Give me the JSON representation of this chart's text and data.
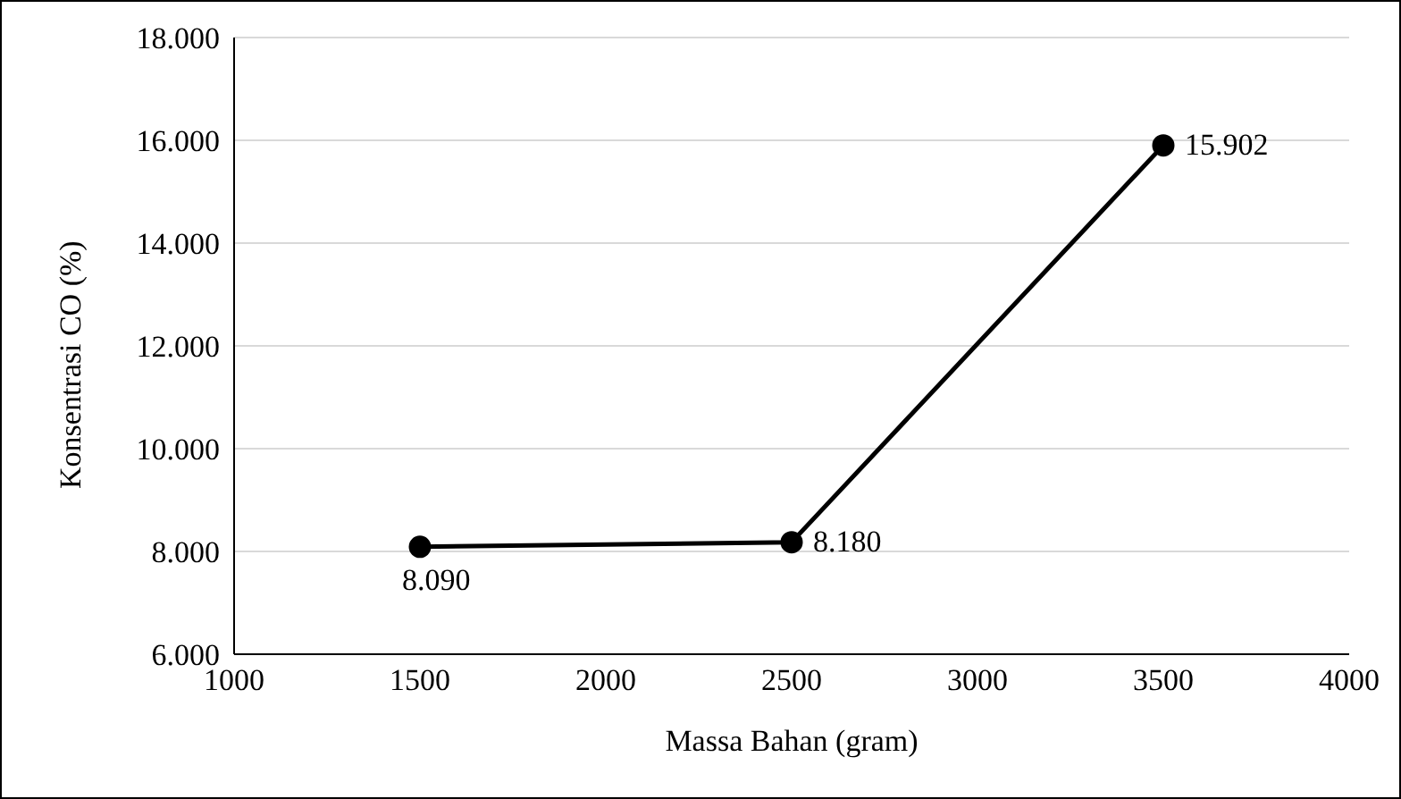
{
  "chart_data": {
    "type": "line",
    "xlabel": "Massa Bahan (gram)",
    "ylabel": "Konsentrasi CO (%)",
    "x": [
      1500,
      2500,
      3500
    ],
    "series": [
      {
        "color": "#000000",
        "values": [
          8.09,
          8.18,
          15.902
        ],
        "value_labels": [
          "8.090",
          "8.180",
          "15.902"
        ]
      }
    ],
    "xlim": [
      1000,
      4000
    ],
    "xticks": [
      1000,
      1500,
      2000,
      2500,
      3000,
      3500,
      4000
    ],
    "ylim": [
      6,
      18
    ],
    "yticks": [
      {
        "value": 6,
        "label": "6.000"
      },
      {
        "value": 8,
        "label": "8.000"
      },
      {
        "value": 10,
        "label": "10.000"
      },
      {
        "value": 12,
        "label": "12.000"
      },
      {
        "value": 14,
        "label": "14.000"
      },
      {
        "value": 16,
        "label": "16.000"
      },
      {
        "value": 18,
        "label": "18.000"
      }
    ],
    "grid": "y",
    "marker": "circle",
    "line_style": "solid",
    "legend": false
  }
}
